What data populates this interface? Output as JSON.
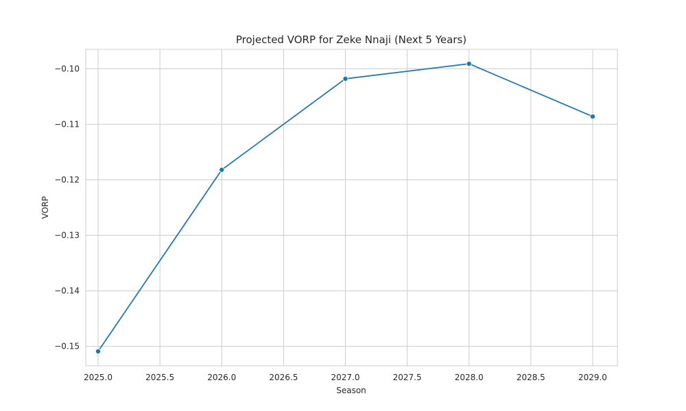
{
  "chart_data": {
    "type": "line",
    "title": "Projected VORP for Zeke Nnaji (Next 5 Years)",
    "xlabel": "Season",
    "ylabel": "VORP",
    "xlim": [
      2024.9,
      2029.2
    ],
    "ylim": [
      -0.1535,
      -0.0965
    ],
    "xticks": [
      2025.0,
      2025.5,
      2026.0,
      2026.5,
      2027.0,
      2027.5,
      2028.0,
      2028.5,
      2029.0
    ],
    "xtick_labels": [
      "2025.0",
      "2025.5",
      "2026.0",
      "2026.5",
      "2027.0",
      "2027.5",
      "2028.0",
      "2028.5",
      "2029.0"
    ],
    "yticks": [
      -0.15,
      -0.14,
      -0.13,
      -0.12,
      -0.11,
      -0.1
    ],
    "ytick_labels": [
      "−0.15",
      "−0.14",
      "−0.13",
      "−0.12",
      "−0.11",
      "−0.10"
    ],
    "grid": true,
    "series": [
      {
        "x": [
          2025,
          2026,
          2027,
          2028,
          2029
        ],
        "values": [
          -0.1509,
          -0.1182,
          -0.1018,
          -0.0991,
          -0.1086
        ],
        "color": "#1f77b4",
        "marker": "circle"
      }
    ]
  }
}
